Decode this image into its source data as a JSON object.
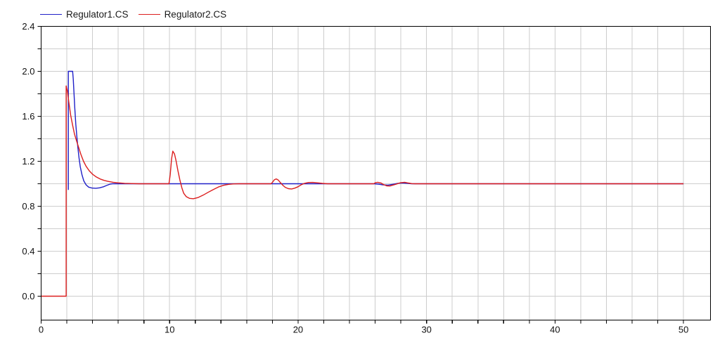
{
  "chart_data": {
    "type": "line",
    "title": "",
    "xlabel": "",
    "ylabel": "",
    "xlim": [
      0,
      52.1
    ],
    "ylim": [
      -0.2125,
      2.4
    ],
    "grid": true,
    "legend_position": "top-left",
    "x_ticks": {
      "label_values": [
        0,
        10,
        20,
        30,
        40,
        50
      ],
      "labels": [
        "0",
        "10",
        "20",
        "30",
        "40",
        "50"
      ],
      "minor_step": 2
    },
    "y_ticks": {
      "label_values": [
        0.0,
        0.4,
        0.8,
        1.2,
        1.6,
        2.0,
        2.4
      ],
      "labels": [
        "0.0",
        "0.4",
        "0.8",
        "1.2",
        "1.6",
        "2.0",
        "2.4"
      ],
      "minor_step": 0.2
    },
    "colors": {
      "grid": "#cdcdcd",
      "axis": "#000000",
      "series1": "#2020c8",
      "series2": "#dc1e1e"
    },
    "series": [
      {
        "name": "Regulator1.CS",
        "color": "#2020c8",
        "points": [
          [
            2.12,
            0.945
          ],
          [
            2.12,
            2.0
          ],
          [
            2.45,
            2.0
          ],
          [
            2.5,
            1.93
          ],
          [
            2.56,
            1.8
          ],
          [
            2.62,
            1.67
          ],
          [
            2.7,
            1.53
          ],
          [
            2.78,
            1.42
          ],
          [
            2.86,
            1.32
          ],
          [
            2.95,
            1.23
          ],
          [
            3.05,
            1.15
          ],
          [
            3.18,
            1.08
          ],
          [
            3.32,
            1.025
          ],
          [
            3.5,
            0.99
          ],
          [
            3.7,
            0.97
          ],
          [
            3.95,
            0.962
          ],
          [
            4.25,
            0.96
          ],
          [
            4.55,
            0.964
          ],
          [
            4.85,
            0.973
          ],
          [
            5.1,
            0.985
          ],
          [
            5.35,
            0.996
          ],
          [
            5.55,
            1.0
          ],
          [
            25.9,
            1.0
          ],
          [
            26.25,
            0.997
          ],
          [
            26.6,
            0.99
          ],
          [
            27.0,
            0.988
          ],
          [
            27.35,
            0.995
          ],
          [
            27.75,
            1.004
          ],
          [
            28.15,
            1.007
          ],
          [
            28.55,
            1.003
          ],
          [
            28.85,
            1.0
          ],
          [
            50,
            1.0
          ]
        ]
      },
      {
        "name": "Regulator2.CS",
        "color": "#dc1e1e",
        "points": [
          [
            0,
            0
          ],
          [
            1.95,
            0
          ],
          [
            1.95,
            1.87
          ],
          [
            2.05,
            1.82
          ],
          [
            2.15,
            1.73
          ],
          [
            2.3,
            1.61
          ],
          [
            2.45,
            1.52
          ],
          [
            2.6,
            1.44
          ],
          [
            2.75,
            1.385
          ],
          [
            2.9,
            1.33
          ],
          [
            3.1,
            1.26
          ],
          [
            3.3,
            1.2
          ],
          [
            3.5,
            1.155
          ],
          [
            3.75,
            1.115
          ],
          [
            4.0,
            1.085
          ],
          [
            4.3,
            1.06
          ],
          [
            4.6,
            1.042
          ],
          [
            4.9,
            1.03
          ],
          [
            5.2,
            1.021
          ],
          [
            5.6,
            1.013
          ],
          [
            6.0,
            1.008
          ],
          [
            6.5,
            1.004
          ],
          [
            7.0,
            1.002
          ],
          [
            7.6,
            1.0
          ],
          [
            9.95,
            1.0
          ],
          [
            10.05,
            1.08
          ],
          [
            10.15,
            1.22
          ],
          [
            10.25,
            1.29
          ],
          [
            10.38,
            1.265
          ],
          [
            10.5,
            1.205
          ],
          [
            10.65,
            1.115
          ],
          [
            10.8,
            1.035
          ],
          [
            10.95,
            0.965
          ],
          [
            11.1,
            0.915
          ],
          [
            11.3,
            0.885
          ],
          [
            11.55,
            0.87
          ],
          [
            11.85,
            0.867
          ],
          [
            12.2,
            0.877
          ],
          [
            12.6,
            0.898
          ],
          [
            13.0,
            0.924
          ],
          [
            13.4,
            0.949
          ],
          [
            13.8,
            0.971
          ],
          [
            14.2,
            0.986
          ],
          [
            14.6,
            0.995
          ],
          [
            15.0,
            0.999
          ],
          [
            15.4,
            1.0
          ],
          [
            17.9,
            1.0
          ],
          [
            18.0,
            1.012
          ],
          [
            18.15,
            1.035
          ],
          [
            18.3,
            1.043
          ],
          [
            18.45,
            1.034
          ],
          [
            18.6,
            1.013
          ],
          [
            18.8,
            0.988
          ],
          [
            19.0,
            0.968
          ],
          [
            19.25,
            0.956
          ],
          [
            19.5,
            0.954
          ],
          [
            19.75,
            0.961
          ],
          [
            20.0,
            0.974
          ],
          [
            20.25,
            0.991
          ],
          [
            20.5,
            1.004
          ],
          [
            20.8,
            1.011
          ],
          [
            21.15,
            1.012
          ],
          [
            21.5,
            1.008
          ],
          [
            21.9,
            1.003
          ],
          [
            22.3,
            1.0
          ],
          [
            25.9,
            1.0
          ],
          [
            26.0,
            1.009
          ],
          [
            26.2,
            1.013
          ],
          [
            26.45,
            1.007
          ],
          [
            26.65,
            0.993
          ],
          [
            26.9,
            0.981
          ],
          [
            27.15,
            0.98
          ],
          [
            27.4,
            0.989
          ],
          [
            27.7,
            0.999
          ],
          [
            27.95,
            1.009
          ],
          [
            28.3,
            1.013
          ],
          [
            28.6,
            1.006
          ],
          [
            28.85,
            1.001
          ],
          [
            29.1,
            1.0
          ],
          [
            50,
            1.0
          ]
        ]
      }
    ]
  }
}
